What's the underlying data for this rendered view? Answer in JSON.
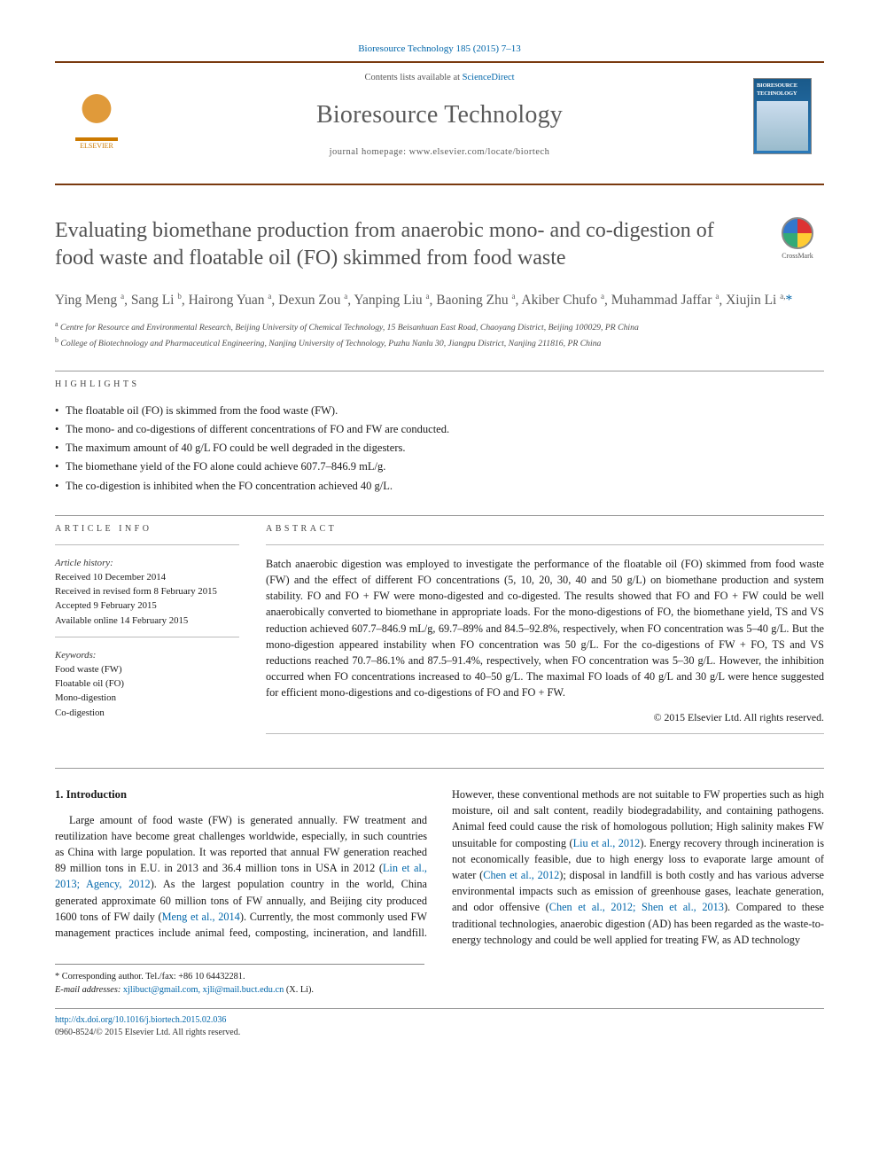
{
  "citation": "Bioresource Technology 185 (2015) 7–13",
  "header": {
    "contents_prefix": "Contents lists available at ",
    "contents_link": "ScienceDirect",
    "journal": "Bioresource Technology",
    "homepage_prefix": "journal homepage: ",
    "homepage_url": "www.elsevier.com/locate/biortech",
    "publisher_label": "ELSEVIER",
    "cover_title": "BIORESOURCE TECHNOLOGY"
  },
  "crossmark_label": "CrossMark",
  "title": "Evaluating biomethane production from anaerobic mono- and co-digestion of food waste and floatable oil (FO) skimmed from food waste",
  "authors_html": "Ying Meng <sup>a</sup>, Sang Li <sup>b</sup>, Hairong Yuan <sup>a</sup>, Dexun Zou <sup>a</sup>, Yanping Liu <sup>a</sup>, Baoning Zhu <sup>a</sup>, Akiber Chufo <sup>a</sup>, Muhammad Jaffar <sup>a</sup>, Xiujin Li <sup>a,</sup><span class='corr'>*</span>",
  "affiliations": [
    {
      "sup": "a",
      "text": "Centre for Resource and Environmental Research, Beijing University of Chemical Technology, 15 Beisanhuan East Road, Chaoyang District, Beijing 100029, PR China"
    },
    {
      "sup": "b",
      "text": "College of Biotechnology and Pharmaceutical Engineering, Nanjing University of Technology, Puzhu Nanlu 30, Jiangpu District, Nanjing 211816, PR China"
    }
  ],
  "highlights_label": "highlights",
  "highlights": [
    "The floatable oil (FO) is skimmed from the food waste (FW).",
    "The mono- and co-digestions of different concentrations of FO and FW are conducted.",
    "The maximum amount of 40 g/L FO could be well degraded in the digesters.",
    "The biomethane yield of the FO alone could achieve 607.7–846.9 mL/g.",
    "The co-digestion is inhibited when the FO concentration achieved 40 g/L."
  ],
  "article_info_label": "article info",
  "abstract_label": "abstract",
  "history_label": "Article history:",
  "history": [
    "Received 10 December 2014",
    "Received in revised form 8 February 2015",
    "Accepted 9 February 2015",
    "Available online 14 February 2015"
  ],
  "keywords_label": "Keywords:",
  "keywords": [
    "Food waste (FW)",
    "Floatable oil (FO)",
    "Mono-digestion",
    "Co-digestion"
  ],
  "abstract": "Batch anaerobic digestion was employed to investigate the performance of the floatable oil (FO) skimmed from food waste (FW) and the effect of different FO concentrations (5, 10, 20, 30, 40 and 50 g/L) on biomethane production and system stability. FO and FO + FW were mono-digested and co-digested. The results showed that FO and FO + FW could be well anaerobically converted to biomethane in appropriate loads. For the mono-digestions of FO, the biomethane yield, TS and VS reduction achieved 607.7–846.9 mL/g, 69.7–89% and 84.5–92.8%, respectively, when FO concentration was 5–40 g/L. But the mono-digestion appeared instability when FO concentration was 50 g/L. For the co-digestions of FW + FO, TS and VS reductions reached 70.7–86.1% and 87.5–91.4%, respectively, when FO concentration was 5–30 g/L. However, the inhibition occurred when FO concentrations increased to 40–50 g/L. The maximal FO loads of 40 g/L and 30 g/L were hence suggested for efficient mono-digestions and co-digestions of FO and FO + FW.",
  "abstract_copyright": "© 2015 Elsevier Ltd. All rights reserved.",
  "intro_heading": "1. Introduction",
  "intro_para": "Large amount of food waste (FW) is generated annually. FW treatment and reutilization have become great challenges worldwide, especially, in such countries as China with large population. It was reported that annual FW generation reached 89 million tons in E.U. in 2013 and 36.4 million tons in USA in 2012 (<a>Lin et al., 2013; Agency, 2012</a>). As the largest population country in the world, China generated approximate 60 million tons of FW annually, and Beijing city produced 1600 tons of FW daily (<a>Meng et al., 2014</a>). Currently, the most commonly used FW management practices include animal feed, composting, incineration, and landfill. However, these conventional methods are not suitable to FW properties such as high moisture, oil and salt content, readily biodegradability, and containing pathogens. Animal feed could cause the risk of homologous pollution; High salinity makes FW unsuitable for composting (<a>Liu et al., 2012</a>). Energy recovery through incineration is not economically feasible, due to high energy loss to evaporate large amount of water (<a>Chen et al., 2012</a>); disposal in landfill is both costly and has various adverse environmental impacts such as emission of greenhouse gases, leachate generation, and odor offensive (<a>Chen et al., 2012; Shen et al., 2013</a>). Compared to these traditional technologies, anaerobic digestion (AD) has been regarded as the waste-to-energy technology and could be well applied for treating FW, as AD technology",
  "footnote_corr": "* Corresponding author. Tel./fax: +86 10 64432281.",
  "footnote_email_label": "E-mail addresses:",
  "footnote_emails": "xjlibuct@gmail.com, xjli@mail.buct.edu.cn",
  "footnote_email_name": " (X. Li).",
  "doi_url": "http://dx.doi.org/10.1016/j.biortech.2015.02.036",
  "issn_line": "0960-8524/© 2015 Elsevier Ltd. All rights reserved."
}
